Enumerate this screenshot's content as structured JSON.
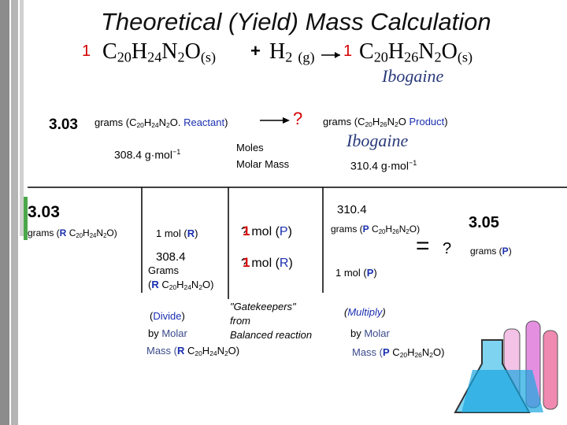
{
  "title": "Theoretical (Yield) Mass Calculation",
  "equation": {
    "coef_reactant": "1",
    "reactant": "C20H24N2O(s)",
    "plus": "+",
    "h2": "H2 (g)",
    "coef_product": "1",
    "product": "C20H26N2O(s)",
    "product_name": "Ibogaine"
  },
  "top": {
    "reactant_grams": "3.03",
    "reactant_label": [
      "grams (",
      "C20H24N2O",
      ". ",
      "Reactant",
      ")"
    ],
    "unknown": "?",
    "product_label": [
      "grams (",
      "C20H26N2O",
      " ",
      "Product",
      ")"
    ],
    "moles": "Moles",
    "molar_mass": "Molar Mass",
    "reactant_mm": [
      "308.4 g·mol",
      "−1"
    ],
    "product_name": "Ibogaine",
    "product_mm": [
      "310.4 g·mol",
      "−1"
    ]
  },
  "grid": {
    "given": "3.03",
    "given_unit": [
      "grams (",
      "R",
      " ",
      "C20H24N2O",
      ")"
    ],
    "f1_top": [
      "1 mol (",
      "R",
      ")"
    ],
    "f1_bottom_value": "308.4",
    "f1_bottom_unit": "Grams",
    "f1_bottom_formula": [
      "(",
      "R",
      " ",
      "C20H24N2O",
      ")"
    ],
    "f2_top": [
      "?",
      "1",
      " mol (",
      "P",
      ")"
    ],
    "f2_bottom": [
      "?",
      "1",
      " mol (",
      "R",
      ")"
    ],
    "f3_top_value": "310.4",
    "f3_top_unit": [
      "grams (",
      "P",
      " ",
      "C20H26N2O",
      ")"
    ],
    "f3_bottom": [
      "1 mol (",
      "P",
      ")"
    ],
    "result_equals": "=",
    "result_unknown": "?",
    "answer": "3.05",
    "answer_unit": [
      "grams (",
      "P",
      ")"
    ]
  },
  "notes": {
    "divide": [
      "(",
      "Divide",
      ")"
    ],
    "divide_by": [
      "by ",
      "Molar"
    ],
    "divide_mass": [
      "Mass  (",
      "R",
      " ",
      "C20H24N2O",
      ")"
    ],
    "gatekeepers": "\"Gatekeepers\"",
    "from": "from",
    "balanced": "Balanced reaction",
    "multiply": [
      "(",
      "Multiply",
      ")"
    ],
    "multiply_by": [
      "by ",
      "Molar"
    ],
    "multiply_mass": [
      "Mass  (",
      "P",
      " ",
      "C20H26N2O",
      ")"
    ]
  }
}
